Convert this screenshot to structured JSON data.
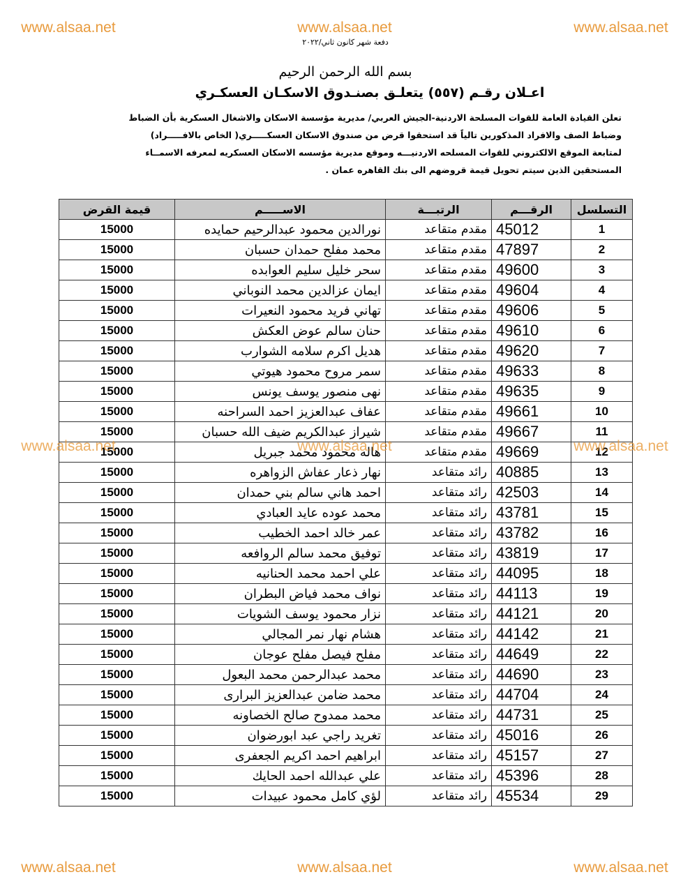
{
  "watermarks": [
    "www.alsaa.net",
    "www.alsaa.net",
    "www.alsaa.net",
    "www.alsaa.net",
    "www.alsaa.net",
    "www.alsaa.net",
    "www.alsaa.net",
    "www.alsaa.net",
    "www.alsaa.net"
  ],
  "header": {
    "batch": "دفعة شهر كانون ثاني/٢٠٢٢",
    "basmala": "بسم الله الرحمن الرحيم",
    "title": "اعـلان رقـم (٥٥٧) يتعلـق بصنـدوق الاسكـان العسكـري",
    "paragraph": [
      "تعلن القيادة العامة للقوات المسلحة الاردنية-الجيش العربي/ مديرية مؤسسة الاسكان والاشغال العسكرية بأن الضباط",
      "وضباط الصف والافراد المذكورين تالياً قد استحقوا قرض من صندوق الاسكان العسكـــــري( الخاص بالافـــــراد)",
      "لمتابعة الموقع الالكتروني للقوات المسلحه الاردنيـــه وموقع مديرية مؤسسه الاسكان العسكريه لمعرفه الاسمــاء",
      "المستحقين الذين سيتم تحويل قيمة قروضهم الى بنك القاهره عمان ."
    ]
  },
  "table": {
    "columns": [
      "التسلسل",
      "الرقـــم",
      "الرتبـــة",
      "الاســـــم",
      "قيمة القرض"
    ],
    "rows": [
      [
        1,
        45012,
        "مقدم متقاعد",
        "نورالدين محمود عبدالرحيم حمايده",
        15000
      ],
      [
        2,
        47897,
        "مقدم متقاعد",
        "محمد مفلح حمدان حسبان",
        15000
      ],
      [
        3,
        49600,
        "مقدم متقاعد",
        "سحر خليل سليم العوابده",
        15000
      ],
      [
        4,
        49604,
        "مقدم متقاعد",
        "ايمان عزالدين محمد النوباني",
        15000
      ],
      [
        5,
        49606,
        "مقدم متقاعد",
        "تهاني فريد محمود النعيرات",
        15000
      ],
      [
        6,
        49610,
        "مقدم متقاعد",
        "حنان سالم عوض العكش",
        15000
      ],
      [
        7,
        49620,
        "مقدم متقاعد",
        "هديل اكرم سلامه الشوارب",
        15000
      ],
      [
        8,
        49633,
        "مقدم متقاعد",
        "سمر مروح محمود هيوتي",
        15000
      ],
      [
        9,
        49635,
        "مقدم متقاعد",
        "نهى منصور يوسف يونس",
        15000
      ],
      [
        10,
        49661,
        "مقدم متقاعد",
        "عفاف عبدالعزيز احمد السراحنه",
        15000
      ],
      [
        11,
        49667,
        "مقدم متقاعد",
        "شيراز عبدالكريم ضيف الله حسبان",
        15000
      ],
      [
        12,
        49669,
        "مقدم متقاعد",
        "هاله محمود محمد جبريل",
        15000
      ],
      [
        13,
        40885,
        "رائد متقاعد",
        "نهار ذعار عفاش الزواهره",
        15000
      ],
      [
        14,
        42503,
        "رائد متقاعد",
        "احمد هاني سالم بني حمدان",
        15000
      ],
      [
        15,
        43781,
        "رائد متقاعد",
        "محمد عوده عايد العبادي",
        15000
      ],
      [
        16,
        43782,
        "رائد متقاعد",
        "عمر خالد احمد الخطيب",
        15000
      ],
      [
        17,
        43819,
        "رائد متقاعد",
        "توفيق محمد سالم الروافعه",
        15000
      ],
      [
        18,
        44095,
        "رائد متقاعد",
        "علي احمد محمد الحنانيه",
        15000
      ],
      [
        19,
        44113,
        "رائد متقاعد",
        "نواف محمد فياض البطران",
        15000
      ],
      [
        20,
        44121,
        "رائد متقاعد",
        "نزار محمود يوسف الشويات",
        15000
      ],
      [
        21,
        44142,
        "رائد متقاعد",
        "هشام نهار نمر المجالي",
        15000
      ],
      [
        22,
        44649,
        "رائد متقاعد",
        "مفلح فيصل مفلح عوجان",
        15000
      ],
      [
        23,
        44690,
        "رائد متقاعد",
        "محمد عبدالرحمن محمد البعول",
        15000
      ],
      [
        24,
        44704,
        "رائد متقاعد",
        "محمد ضامن عبدالعزيز البرارى",
        15000
      ],
      [
        25,
        44731,
        "رائد متقاعد",
        "محمد ممدوح صالح الخصاونه",
        15000
      ],
      [
        26,
        45016,
        "رائد متقاعد",
        "تغريد راجي عبد ابورضوان",
        15000
      ],
      [
        27,
        45157,
        "رائد متقاعد",
        "ابراهيم احمد اكريم الجعفرى",
        15000
      ],
      [
        28,
        45396,
        "رائد متقاعد",
        "علي عبدالله احمد الحايك",
        15000
      ],
      [
        29,
        45534,
        "رائد متقاعد",
        "لؤي كامل محمود عبيدات",
        15000
      ]
    ]
  }
}
